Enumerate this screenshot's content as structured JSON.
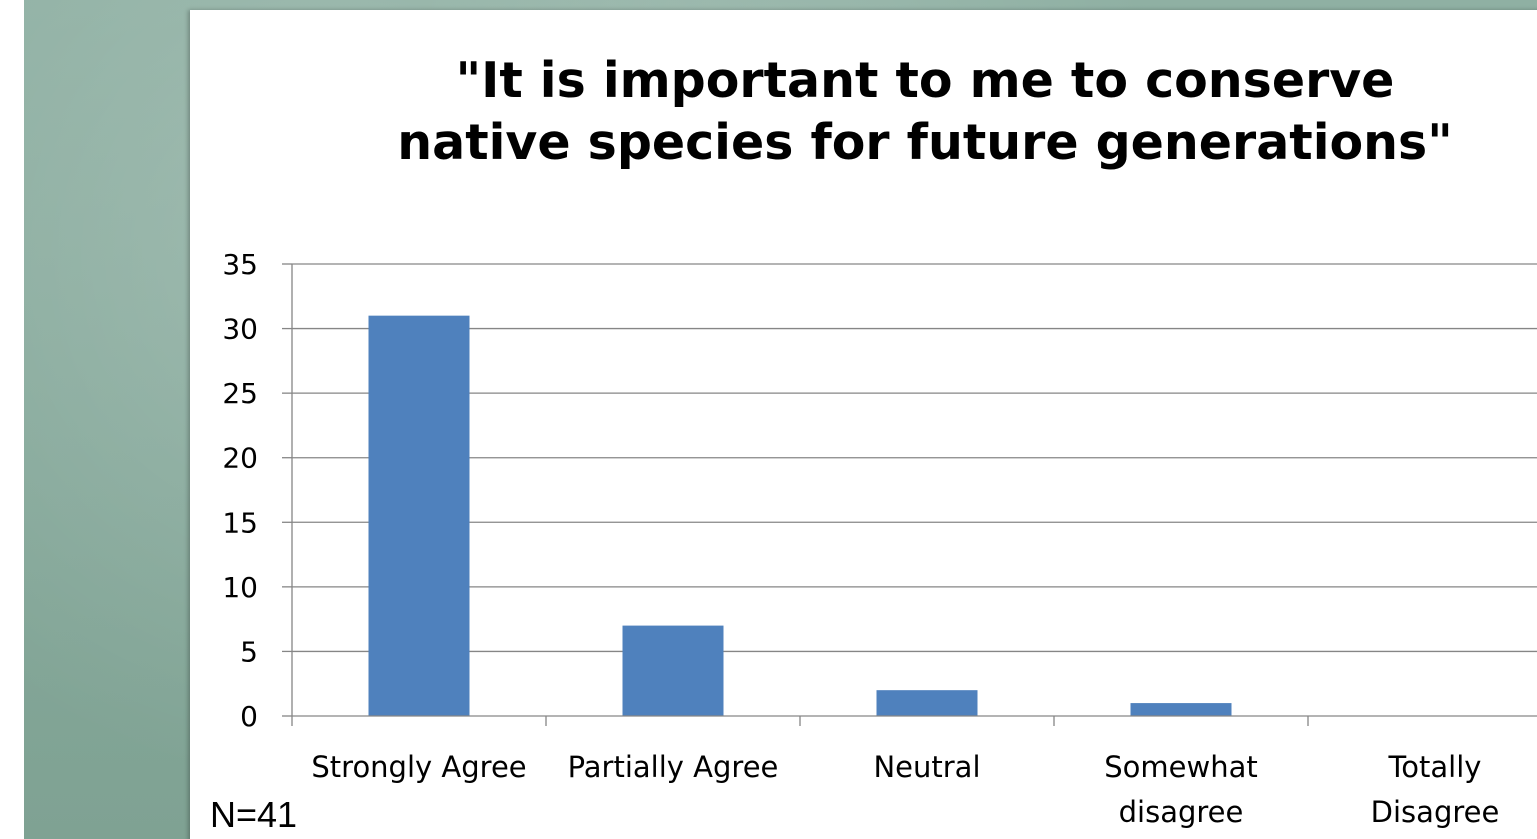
{
  "chart_data": {
    "type": "bar",
    "title": "\"It is important to me to conserve\nnative species for future generations\"",
    "categories": [
      "Strongly Agree",
      "Partially Agree",
      "Neutral",
      "Somewhat\ndisagree",
      "Totally\nDisagree"
    ],
    "values": [
      31,
      7,
      2,
      1,
      0
    ],
    "ylim": [
      0,
      35
    ],
    "yticks": [
      0,
      5,
      10,
      15,
      20,
      25,
      30,
      35
    ],
    "xlabel": "",
    "ylabel": "",
    "grid": true,
    "bar_color": "#4f81bd",
    "note": "N=41"
  }
}
